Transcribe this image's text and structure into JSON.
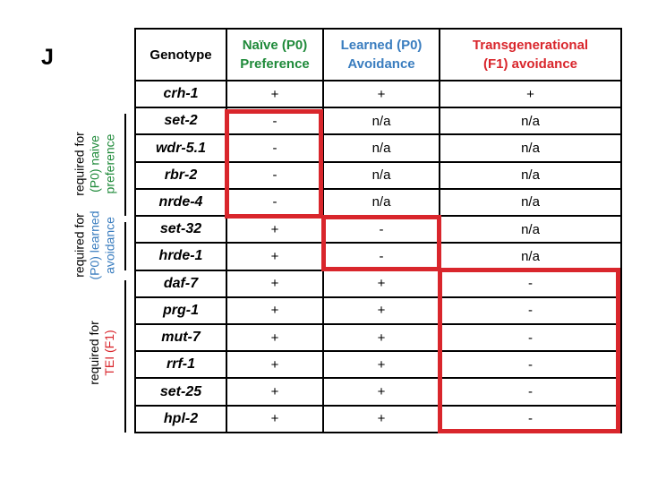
{
  "panel_label": "J",
  "colors": {
    "green": "#1f8a3a",
    "blue": "#3a7dbf",
    "red": "#d9262c",
    "box": "#d9262c"
  },
  "headers": {
    "genotype": "Genotype",
    "naive_l1": "Naïve (P0)",
    "naive_l2": "Preference",
    "learned_l1": "Learned (P0)",
    "learned_l2": "Avoidance",
    "trans_l1": "Transgenerational",
    "trans_l2": "(F1) avoidance"
  },
  "rows": [
    {
      "genotype": "crh-1",
      "naive": "+",
      "learned": "+",
      "trans": "+"
    },
    {
      "genotype": "set-2",
      "naive": "-",
      "learned": "n/a",
      "trans": "n/a"
    },
    {
      "genotype": "wdr-5.1",
      "naive": "-",
      "learned": "n/a",
      "trans": "n/a"
    },
    {
      "genotype": "rbr-2",
      "naive": "-",
      "learned": "n/a",
      "trans": "n/a"
    },
    {
      "genotype": "nrde-4",
      "naive": "-",
      "learned": "n/a",
      "trans": "n/a"
    },
    {
      "genotype": "set-32",
      "naive": "+",
      "learned": "-",
      "trans": "n/a"
    },
    {
      "genotype": "hrde-1",
      "naive": "+",
      "learned": "-",
      "trans": "n/a"
    },
    {
      "genotype": "daf-7",
      "naive": "+",
      "learned": "+",
      "trans": "-"
    },
    {
      "genotype": "prg-1",
      "naive": "+",
      "learned": "+",
      "trans": "-"
    },
    {
      "genotype": "mut-7",
      "naive": "+",
      "learned": "+",
      "trans": "-"
    },
    {
      "genotype": "rrf-1",
      "naive": "+",
      "learned": "+",
      "trans": "-"
    },
    {
      "genotype": "set-25",
      "naive": "+",
      "learned": "+",
      "trans": "-"
    },
    {
      "genotype": "hpl-2",
      "naive": "+",
      "learned": "+",
      "trans": "-"
    }
  ],
  "groups": {
    "naive": {
      "line1": "required for",
      "line2": "(P0) naive",
      "line3": "preference"
    },
    "learned": {
      "line1": "required for",
      "line2": "(P0) learned",
      "line3": "avoidance"
    },
    "tei": {
      "line1": "required for",
      "line2": "TEI (F1)"
    }
  }
}
